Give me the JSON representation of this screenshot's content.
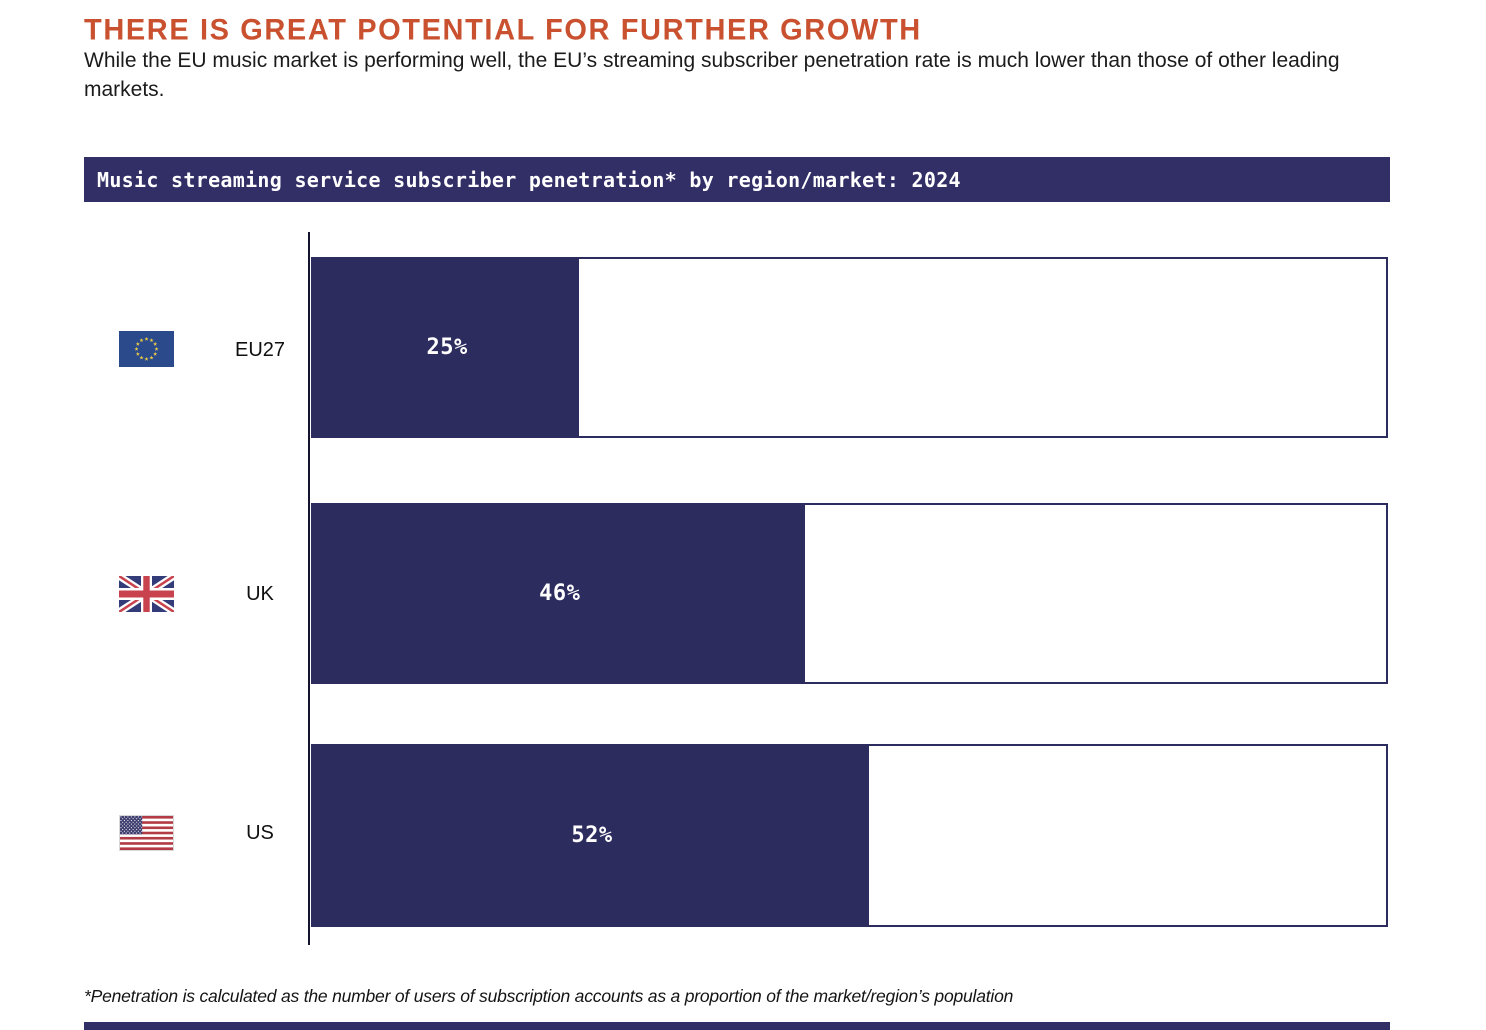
{
  "header": {
    "title": "THERE IS GREAT POTENTIAL FOR FURTHER GROWTH",
    "subtitle": "While the EU music market is performing well, the EU’s streaming subscriber penetration rate is much lower than those of other leading markets."
  },
  "chart": {
    "banner_title": "Music streaming service subscriber penetration* by region/market: 2024",
    "rows": [
      {
        "label": "EU27",
        "flag_icon": "eu-flag",
        "value": 25,
        "value_label": "25%"
      },
      {
        "label": "UK",
        "flag_icon": "uk-flag",
        "value": 46,
        "value_label": "46%"
      },
      {
        "label": "US",
        "flag_icon": "us-flag",
        "value": 52,
        "value_label": "52%"
      }
    ]
  },
  "chart_data": {
    "type": "bar",
    "orientation": "horizontal",
    "title": "Music streaming service subscriber penetration* by region/market: 2024",
    "categories": [
      "EU27",
      "UK",
      "US"
    ],
    "values": [
      25,
      46,
      52
    ],
    "value_labels": [
      "25%",
      "46%",
      "52%"
    ],
    "unit": "%",
    "xlim": [
      0,
      100
    ],
    "grid": false,
    "legend": false,
    "bar_color": "#2d2c5f",
    "track_outline_color": "#2d2c5f"
  },
  "footnote": "*Penetration is calculated as the number of users of subscription accounts as a proportion of the market/region’s population",
  "colors": {
    "accent_orange": "#c9512f",
    "navy": "#2d2c5f",
    "banner_navy": "#322e66",
    "eu_flag_blue": "#2a4a8c",
    "eu_star_yellow": "#f2cf43",
    "uk_blue": "#333c78",
    "uk_red": "#c8434e",
    "us_canton_blue": "#3b3b6d",
    "us_stripe_red": "#b23b45"
  }
}
